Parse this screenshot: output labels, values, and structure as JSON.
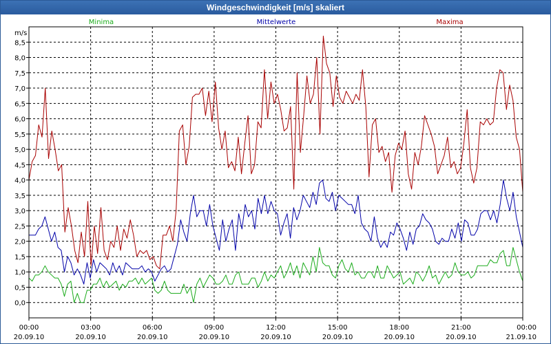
{
  "window": {
    "title": "Windgeschwindigkeit [m/s] skaliert"
  },
  "chart_data": {
    "type": "line",
    "title": "Windgeschwindigkeit [m/s] skaliert",
    "ylabel": "m/s",
    "ylim": [
      -0.5,
      9.0
    ],
    "xlim": [
      0,
      24
    ],
    "yticks": [
      0.0,
      0.5,
      1.0,
      1.5,
      2.0,
      2.5,
      3.0,
      3.5,
      4.0,
      4.5,
      5.0,
      5.5,
      6.0,
      6.5,
      7.0,
      7.5,
      8.0,
      8.5
    ],
    "ytick_labels": [
      "0,0",
      "0,5",
      "1,0",
      "1,5",
      "2,0",
      "2,5",
      "3,0",
      "3,5",
      "4,0",
      "4,5",
      "5,0",
      "5,5",
      "6,0",
      "6,5",
      "7,0",
      "7,5",
      "8,0",
      "8,5"
    ],
    "xticks": [
      {
        "hour": 0,
        "time": "00:00",
        "date": "20.09.10"
      },
      {
        "hour": 3,
        "time": "03:00",
        "date": "20.09.10"
      },
      {
        "hour": 6,
        "time": "06:00",
        "date": "20.09.10"
      },
      {
        "hour": 9,
        "time": "09:00",
        "date": "20.09.10"
      },
      {
        "hour": 12,
        "time": "12:00",
        "date": "20.09.10"
      },
      {
        "hour": 15,
        "time": "15:00",
        "date": "20.09.10"
      },
      {
        "hour": 18,
        "time": "18:00",
        "date": "20.09.10"
      },
      {
        "hour": 21,
        "time": "21:00",
        "date": "20.09.10"
      },
      {
        "hour": 24,
        "time": "00:00",
        "date": "21.09.10"
      }
    ],
    "legend": {
      "minima": {
        "label": "Minima",
        "color": "#1aab1a"
      },
      "mittel": {
        "label": "Mittelwerte",
        "color": "#0000a8"
      },
      "maxima": {
        "label": "Maxima",
        "color": "#a80000"
      }
    },
    "sample_interval_hours": 0.1667,
    "series": [
      {
        "key": "maxima",
        "name": "Maxima",
        "color": "#a80000",
        "values": [
          4.0,
          4.6,
          4.8,
          5.8,
          5.4,
          7.0,
          4.7,
          5.6,
          5.0,
          4.3,
          4.5,
          2.3,
          3.1,
          2.5,
          1.7,
          1.3,
          2.3,
          1.5,
          3.3,
          1.2,
          2.5,
          1.6,
          3.1,
          1.7,
          1.4,
          2.0,
          1.8,
          2.5,
          1.7,
          2.4,
          2.1,
          2.7,
          2.2,
          1.5,
          1.7,
          1.6,
          1.7,
          1.4,
          1.5,
          1.2,
          1.1,
          2.2,
          2.2,
          2.5,
          2.0,
          3.0,
          5.6,
          5.8,
          4.5,
          5.1,
          6.7,
          6.8,
          6.8,
          7.0,
          6.1,
          6.9,
          5.9,
          7.2,
          5.7,
          5.0,
          5.6,
          4.4,
          4.6,
          4.3,
          5.4,
          4.2,
          5.2,
          6.1,
          4.2,
          4.5,
          5.9,
          5.7,
          7.6,
          6.0,
          7.2,
          6.5,
          6.8,
          6.3,
          5.6,
          5.7,
          6.4,
          3.7,
          7.5,
          4.9,
          6.1,
          7.4,
          6.5,
          6.8,
          8.0,
          5.5,
          8.7,
          7.8,
          7.5,
          6.4,
          7.4,
          6.7,
          6.5,
          6.9,
          6.7,
          6.5,
          6.8,
          6.6,
          7.6,
          6.4,
          4.1,
          5.8,
          6.0,
          4.9,
          5.1,
          4.6,
          4.9,
          3.6,
          4.8,
          5.2,
          5.0,
          5.6,
          4.2,
          3.7,
          4.9,
          4.5,
          5.1,
          6.1,
          5.8,
          5.5,
          5.1,
          4.2,
          4.5,
          4.8,
          5.4,
          4.4,
          4.6,
          4.2,
          4.4,
          5.2,
          6.3,
          4.4,
          3.9,
          4.4,
          5.9,
          5.8,
          6.0,
          5.8,
          5.9,
          7.0,
          7.6,
          7.5,
          6.3,
          7.1,
          6.6,
          5.4,
          5.0,
          3.6
        ]
      },
      {
        "key": "mittel",
        "name": "Mittelwerte",
        "color": "#0000a8",
        "values": [
          2.2,
          2.2,
          2.2,
          2.4,
          2.5,
          2.8,
          2.4,
          2.0,
          2.3,
          1.8,
          1.7,
          1.0,
          1.5,
          1.3,
          0.9,
          1.1,
          0.9,
          0.6,
          1.3,
          0.8,
          1.4,
          1.0,
          1.3,
          1.2,
          1.1,
          0.9,
          1.3,
          1.0,
          1.2,
          0.9,
          1.3,
          1.2,
          1.1,
          1.1,
          1.1,
          1.2,
          1.0,
          1.1,
          1.0,
          0.7,
          0.9,
          1.1,
          1.2,
          1.0,
          1.1,
          1.5,
          1.9,
          2.7,
          2.3,
          2.0,
          2.9,
          3.5,
          2.8,
          3.0,
          3.0,
          2.5,
          3.2,
          2.5,
          2.1,
          1.7,
          2.7,
          2.0,
          2.4,
          2.7,
          1.7,
          2.9,
          2.4,
          3.2,
          2.8,
          3.0,
          2.4,
          3.4,
          2.9,
          3.5,
          2.9,
          3.3,
          3.0,
          2.9,
          2.2,
          2.6,
          2.9,
          2.1,
          3.1,
          2.7,
          3.0,
          3.5,
          3.3,
          3.1,
          3.6,
          3.2,
          3.9,
          4.0,
          3.4,
          3.3,
          3.6,
          3.0,
          3.5,
          3.4,
          3.3,
          3.2,
          3.2,
          2.9,
          3.5,
          2.6,
          2.4,
          2.3,
          2.0,
          2.8,
          2.1,
          1.8,
          2.0,
          1.8,
          2.3,
          2.2,
          2.6,
          2.4,
          2.1,
          1.7,
          2.3,
          1.9,
          2.4,
          2.5,
          2.9,
          2.7,
          2.6,
          2.4,
          2.0,
          1.9,
          2.1,
          2.0,
          2.0,
          2.4,
          2.1,
          2.6,
          2.0,
          2.7,
          2.6,
          2.2,
          2.2,
          2.4,
          2.9,
          3.0,
          3.0,
          2.7,
          3.0,
          2.6,
          3.2,
          4.0,
          3.4,
          3.0,
          3.6,
          2.8,
          2.3,
          1.8
        ]
      },
      {
        "key": "minima",
        "name": "Minima",
        "color": "#1aab1a",
        "values": [
          0.8,
          0.7,
          0.9,
          0.9,
          1.0,
          1.2,
          1.0,
          0.9,
          0.8,
          0.8,
          0.6,
          0.2,
          0.6,
          0.7,
          0.0,
          0.3,
          0.0,
          0.0,
          0.4,
          0.4,
          0.6,
          0.6,
          0.8,
          0.5,
          0.7,
          0.5,
          0.6,
          0.7,
          0.4,
          0.6,
          0.5,
          0.7,
          0.7,
          0.8,
          0.6,
          0.8,
          0.6,
          0.7,
          0.8,
          0.4,
          0.3,
          0.4,
          0.7,
          0.4,
          0.3,
          0.3,
          0.3,
          0.3,
          0.6,
          0.3,
          0.5,
          0.0,
          0.6,
          0.8,
          0.5,
          0.7,
          0.9,
          0.8,
          0.6,
          0.6,
          0.7,
          0.9,
          0.6,
          0.6,
          0.9,
          1.0,
          0.6,
          0.6,
          0.6,
          0.8,
          0.8,
          0.5,
          0.7,
          1.0,
          0.7,
          0.9,
          0.8,
          1.0,
          1.2,
          0.8,
          1.0,
          1.3,
          0.9,
          1.2,
          0.8,
          1.3,
          1.1,
          0.9,
          1.5,
          1.0,
          1.8,
          1.3,
          1.2,
          1.2,
          0.9,
          0.8,
          1.2,
          1.4,
          1.1,
          1.0,
          1.3,
          0.9,
          1.0,
          0.8,
          0.8,
          1.0,
          1.0,
          0.8,
          1.2,
          0.8,
          0.8,
          1.2,
          1.0,
          0.8,
          0.9,
          1.0,
          0.6,
          0.7,
          0.8,
          0.6,
          1.0,
          0.9,
          0.7,
          0.9,
          1.2,
          0.8,
          0.9,
          0.6,
          0.8,
          1.0,
          0.8,
          0.9,
          1.3,
          1.0,
          0.9,
          0.9,
          1.0,
          0.8,
          0.9,
          1.2,
          1.2,
          1.2,
          1.2,
          1.4,
          1.3,
          1.3,
          1.6,
          1.7,
          1.2,
          1.2,
          1.8,
          1.4,
          1.0,
          0.7
        ]
      }
    ]
  }
}
